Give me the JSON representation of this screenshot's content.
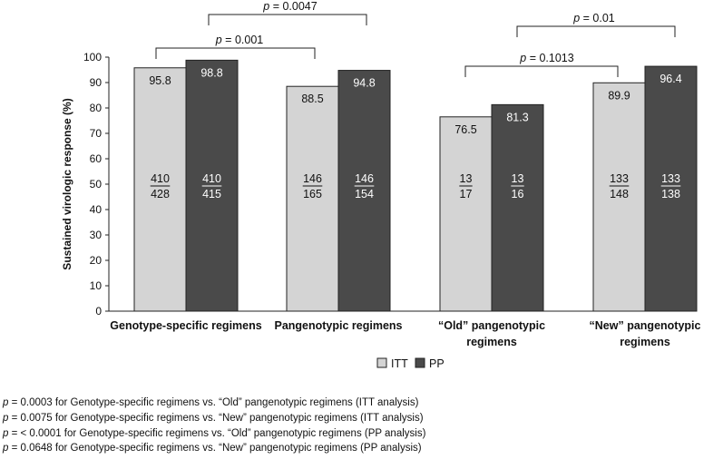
{
  "chart_data": {
    "type": "bar",
    "ylabel": "Sustained virologic response (%)",
    "xlabel": "",
    "ylim": [
      0,
      100
    ],
    "yticks": [
      0,
      10,
      20,
      30,
      40,
      50,
      60,
      70,
      80,
      90,
      100
    ],
    "grid": false,
    "legend_position": "bottom",
    "categories": [
      [
        "Genotype-specific regimens"
      ],
      [
        "Pangenotypic regimens"
      ],
      [
        "“Old” pangenotypic",
        "regimens"
      ],
      [
        "“New” pangenotypic",
        "regimens"
      ]
    ],
    "series": [
      {
        "name": "ITT",
        "color": "#d4d4d4",
        "values": [
          95.8,
          88.5,
          76.5,
          89.9
        ],
        "numerators": [
          "410",
          "146",
          "13",
          "133"
        ],
        "denominators": [
          "428",
          "165",
          "17",
          "148"
        ]
      },
      {
        "name": "PP",
        "color": "#4a4a4a",
        "values": [
          98.8,
          94.8,
          81.3,
          96.4
        ],
        "numerators": [
          "410",
          "146",
          "13",
          "133"
        ],
        "denominators": [
          "415",
          "154",
          "16",
          "138"
        ]
      }
    ],
    "annotations": [
      {
        "from_category": 0,
        "to_category": 1,
        "prefix": "p",
        "text": " = 0.001"
      },
      {
        "from_category": 0,
        "to_category": 1,
        "prefix": "p",
        "text": " = 0.0047"
      },
      {
        "from_category": 2,
        "to_category": 3,
        "prefix": "p",
        "text": " = 0.1013"
      },
      {
        "from_category": 2,
        "to_category": 3,
        "prefix": "p",
        "text": " = 0.01"
      }
    ]
  },
  "footnotes": [
    {
      "p": "p",
      "text": " = 0.0003 for Genotype-specific regimens vs. “Old” pangenotypic regimens (ITT analysis)"
    },
    {
      "p": "p",
      "text": " = 0.0075 for Genotype-specific regimens vs. “New” pangenotypic regimens (ITT analysis)"
    },
    {
      "p": "p",
      "text": " = < 0.0001 for Genotype-specific regimens vs. “Old” pangenotypic regimens (PP analysis)"
    },
    {
      "p": "p",
      "text": " = 0.0648 for Genotype-specific regimens vs. “New” pangenotypic regimens (PP analysis)"
    }
  ]
}
